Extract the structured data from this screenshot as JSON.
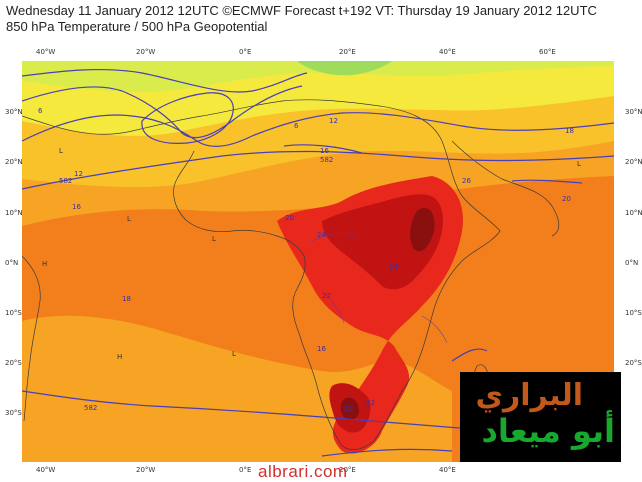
{
  "header": {
    "line1": "Wednesday 11 January 2012 12UTC ©ECMWF Forecast t+192 VT: Thursday 19 January 2012 12UTC",
    "line2": "850 hPa Temperature / 500 hPa Geopotential"
  },
  "axes": {
    "lon_labels": [
      "40°W",
      "20°W",
      "0°E",
      "20°E",
      "40°E",
      "60°E"
    ],
    "lat_labels": [
      "30°N",
      "20°N",
      "10°N",
      "0°N",
      "10°S",
      "20°S",
      "30°S"
    ]
  },
  "contour_labels": [
    "6",
    "6",
    "12",
    "12",
    "16",
    "16",
    "16",
    "18",
    "18",
    "20",
    "20",
    "22",
    "22",
    "24",
    "24",
    "26",
    "26",
    "582",
    "582",
    "582"
  ],
  "watermark": {
    "logo_line1": "البراري",
    "logo_line2": "أبو ميعاد",
    "site": "albrari.com"
  },
  "colors": {
    "background": "#ffffff",
    "orange_deep": "#f27f1c",
    "orange": "#f7a323",
    "orange_light": "#f9c22b",
    "yellow": "#f5e93e",
    "yellow_green": "#d9ec4b",
    "green": "#9fdc5c",
    "red": "#e8281c",
    "red_dark": "#c21313",
    "maroon": "#8a1010",
    "contour": "#4a3fb5",
    "logo_orange": "#c2591a",
    "logo_green": "#17a82e",
    "site_red": "#d1302a"
  }
}
